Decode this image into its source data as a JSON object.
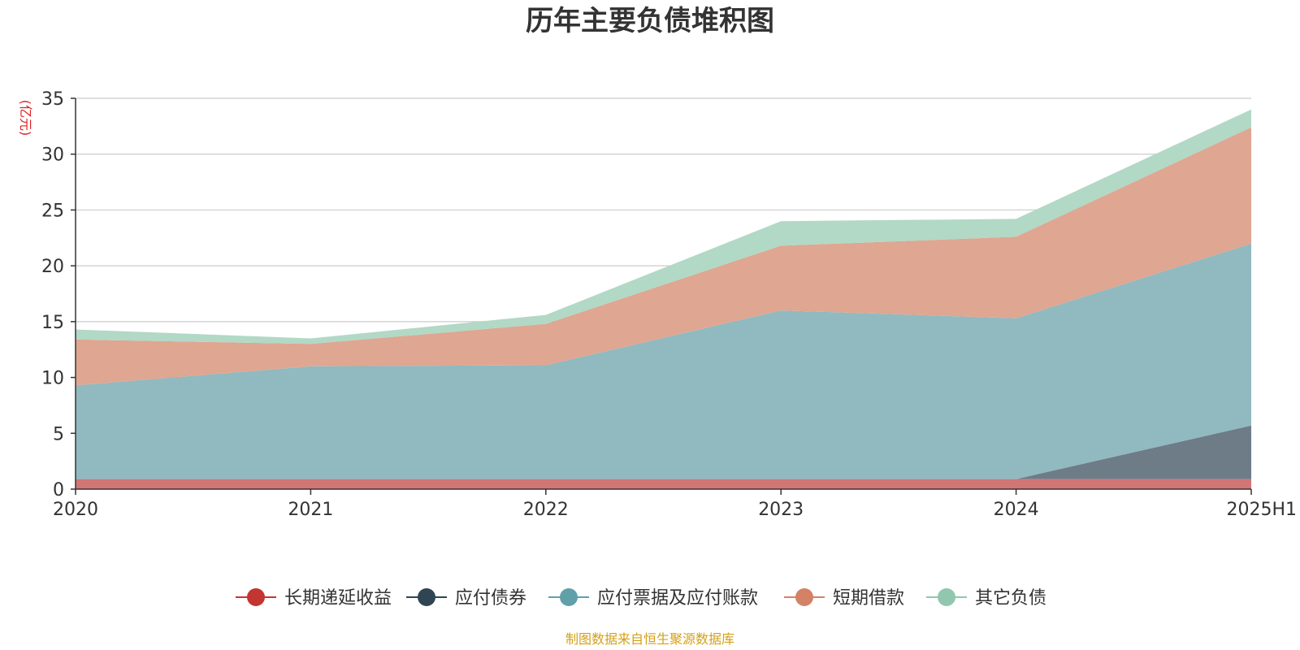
{
  "chart_data": {
    "type": "area",
    "stacked": true,
    "title": "历年主要负债堆积图",
    "ylabel": "(亿元)",
    "xlabel": "",
    "categories": [
      "2020",
      "2021",
      "2022",
      "2023",
      "2024",
      "2025H1"
    ],
    "ylim": [
      0,
      35
    ],
    "yticks": [
      0,
      5,
      10,
      15,
      20,
      25,
      30,
      35
    ],
    "grid": true,
    "legend_position": "bottom",
    "series": [
      {
        "name": "长期递延收益",
        "color": "#c23531",
        "fill": "#d27575",
        "values": [
          0.9,
          0.9,
          0.9,
          0.9,
          0.9,
          0.9
        ]
      },
      {
        "name": "应付债券",
        "color": "#2f4554",
        "fill": "#6e7c88",
        "values": [
          0,
          0,
          0,
          0,
          0,
          4.8
        ]
      },
      {
        "name": "应付票据及应付账款",
        "color": "#61a0a8",
        "fill": "#91b9c0",
        "values": [
          8.4,
          10.1,
          10.2,
          15.1,
          14.4,
          16.3
        ]
      },
      {
        "name": "短期借款",
        "color": "#d48265",
        "fill": "#dfa691",
        "values": [
          4.1,
          2.0,
          3.7,
          5.8,
          7.3,
          10.4
        ]
      },
      {
        "name": "其它负债",
        "color": "#91c7ae",
        "fill": "#b2d8c6",
        "values": [
          0.9,
          0.5,
          0.8,
          2.2,
          1.6,
          1.6
        ]
      }
    ]
  },
  "source_text": "制图数据来自恒生聚源数据库"
}
